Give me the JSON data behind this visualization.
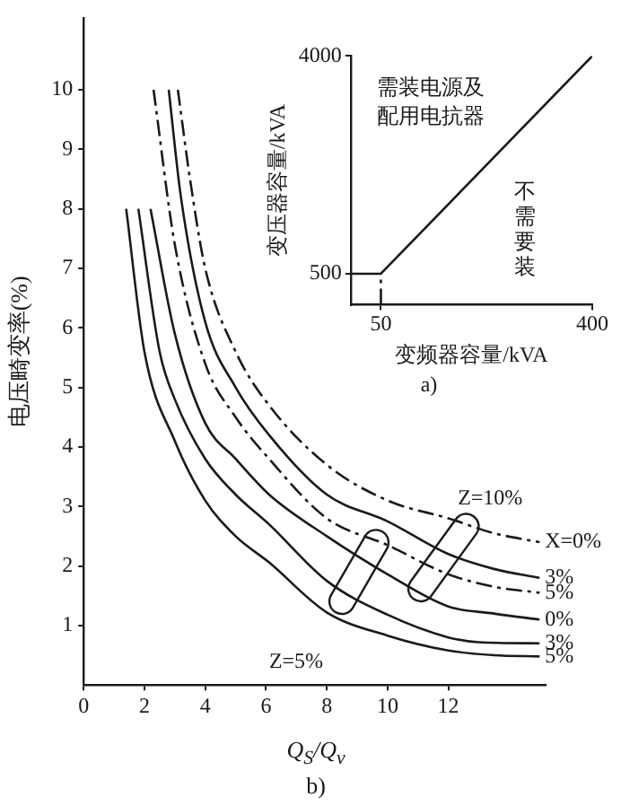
{
  "chart_data": [
    {
      "type": "line",
      "title": "b)",
      "xlabel": "Q$_{S}$/Q$_{v}$",
      "ylabel": "电压畸变率(%)",
      "xlim": [
        0,
        15.2
      ],
      "ylim": [
        0,
        11.2
      ],
      "xticks": [
        0,
        2,
        4,
        6,
        8,
        10,
        12
      ],
      "yticks": [
        1,
        2,
        3,
        4,
        5,
        6,
        7,
        8,
        9,
        10
      ],
      "marker": "none",
      "series": [
        {
          "name": "X=0%",
          "color": "#1a1a1a",
          "line_style": "dashed",
          "x": [
            3.1,
            3.5,
            4,
            5,
            6.1,
            8,
            10,
            12,
            13.5,
            15
          ],
          "values": [
            10,
            8.5,
            7,
            5.6,
            4.7,
            3.7,
            3.1,
            2.8,
            2.55,
            2.4
          ]
        },
        {
          "name": "3%",
          "color": "#1a1a1a",
          "line_style": "solid",
          "x": [
            2.8,
            3.2,
            4,
            5,
            6.1,
            8,
            10,
            12,
            13.5,
            15
          ],
          "values": [
            10,
            8.2,
            6.1,
            5,
            4.2,
            3.2,
            2.75,
            2.2,
            1.95,
            1.8
          ]
        },
        {
          "name": "5%",
          "color": "#1a1a1a",
          "line_style": "dashed",
          "x": [
            2.3,
            3,
            4,
            5,
            6.1,
            8,
            10,
            12,
            13.5,
            15
          ],
          "values": [
            10,
            7.4,
            5.4,
            4.5,
            3.8,
            2.8,
            2.35,
            1.86,
            1.65,
            1.55
          ]
        },
        {
          "name": "0%",
          "color": "#1a1a1a",
          "line_style": "solid",
          "x": [
            2.2,
            3,
            4,
            5,
            6.1,
            8,
            10,
            12,
            13.5,
            15
          ],
          "values": [
            8,
            5.9,
            4.4,
            3.8,
            3.2,
            2.5,
            1.86,
            1.32,
            1.2,
            1.1
          ]
        },
        {
          "name": "3%",
          "color": "#1a1a1a",
          "line_style": "solid",
          "x": [
            1.8,
            2.5,
            3,
            4,
            5,
            6.1,
            8,
            10,
            12,
            13,
            15
          ],
          "values": [
            8,
            5.6,
            4.8,
            3.8,
            3.2,
            2.7,
            1.75,
            1.18,
            0.8,
            0.72,
            0.7
          ]
        },
        {
          "name": "5%",
          "color": "#1a1a1a",
          "line_style": "solid",
          "x": [
            1.4,
            2,
            3,
            4,
            5,
            6.1,
            8,
            10,
            12,
            13.5,
            15
          ],
          "values": [
            8,
            5.6,
            4.1,
            3.1,
            2.5,
            2.06,
            1.22,
            0.83,
            0.58,
            0.5,
            0.48
          ]
        }
      ],
      "annotations": [
        "Z=10%",
        "Z=5%"
      ]
    },
    {
      "type": "line",
      "title": "a)",
      "xlabel": "变频器容量/kVA",
      "ylabel": "变压器容量/kVA",
      "xlim": [
        0,
        400
      ],
      "ylim": [
        0,
        4000
      ],
      "xticks": [
        50,
        400
      ],
      "yticks": [
        500,
        4000
      ],
      "marker": "none",
      "series": [
        {
          "color": "#1a1a1a",
          "line_style": "solid",
          "x": [
            0,
            50,
            400
          ],
          "values": [
            500,
            500,
            4000
          ]
        },
        {
          "color": "#1a1a1a",
          "line_style": "dashed",
          "x": [
            50,
            50
          ],
          "values": [
            0,
            500
          ]
        }
      ],
      "annotations": [
        "需装电源及配用电抗器",
        "不需要装"
      ]
    }
  ]
}
